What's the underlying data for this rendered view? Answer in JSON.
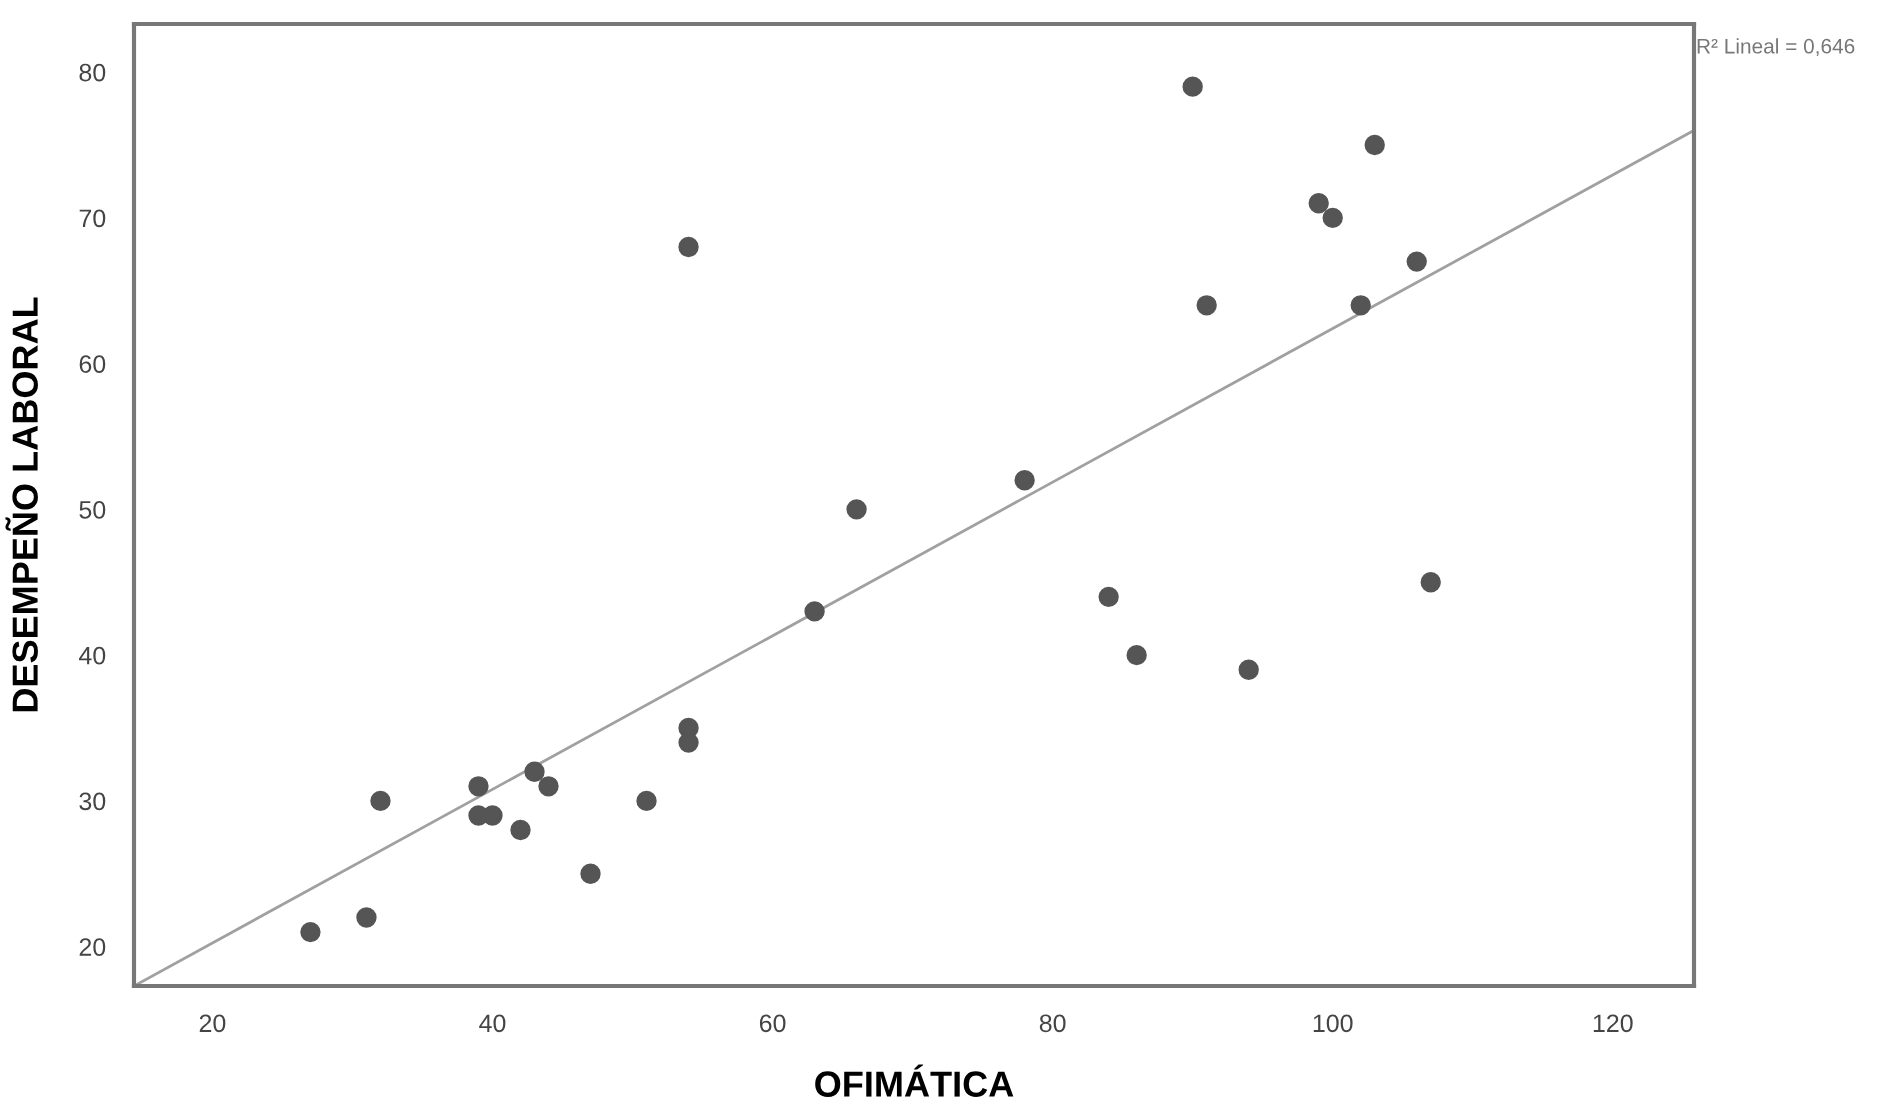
{
  "chart_data": {
    "type": "scatter",
    "xlabel": "OFIMÁTICA",
    "ylabel": "DESEMPEÑO LABORAL",
    "xlim": [
      14.4,
      125.8
    ],
    "ylim": [
      17.3,
      83.3
    ],
    "xticks": [
      20,
      40,
      60,
      80,
      100,
      120
    ],
    "yticks": [
      20,
      30,
      40,
      50,
      60,
      70,
      80
    ],
    "grid": false,
    "legend": false,
    "marker": "circle",
    "annotations": [
      "R² Lineal = 0,646"
    ],
    "series": [
      {
        "color": "#555555",
        "x": [
          27,
          31,
          32,
          39,
          39,
          40,
          42,
          43,
          44,
          47,
          51,
          54,
          54,
          54,
          63,
          66,
          78,
          84,
          86,
          90,
          91,
          94,
          99,
          100,
          102,
          103,
          106,
          107
        ],
        "values": [
          21,
          22,
          30,
          31,
          29,
          29,
          28,
          32,
          31,
          25,
          30,
          35,
          34,
          68,
          43,
          50,
          52,
          44,
          40,
          79,
          64,
          39,
          71,
          70,
          64,
          75,
          67,
          45
        ]
      },
      {
        "type": "line",
        "color": "#a0a0a0",
        "marker": "none",
        "line_style": "solid",
        "x": [
          14.4,
          125.8
        ],
        "values": [
          17.3,
          76.0
        ]
      }
    ]
  }
}
